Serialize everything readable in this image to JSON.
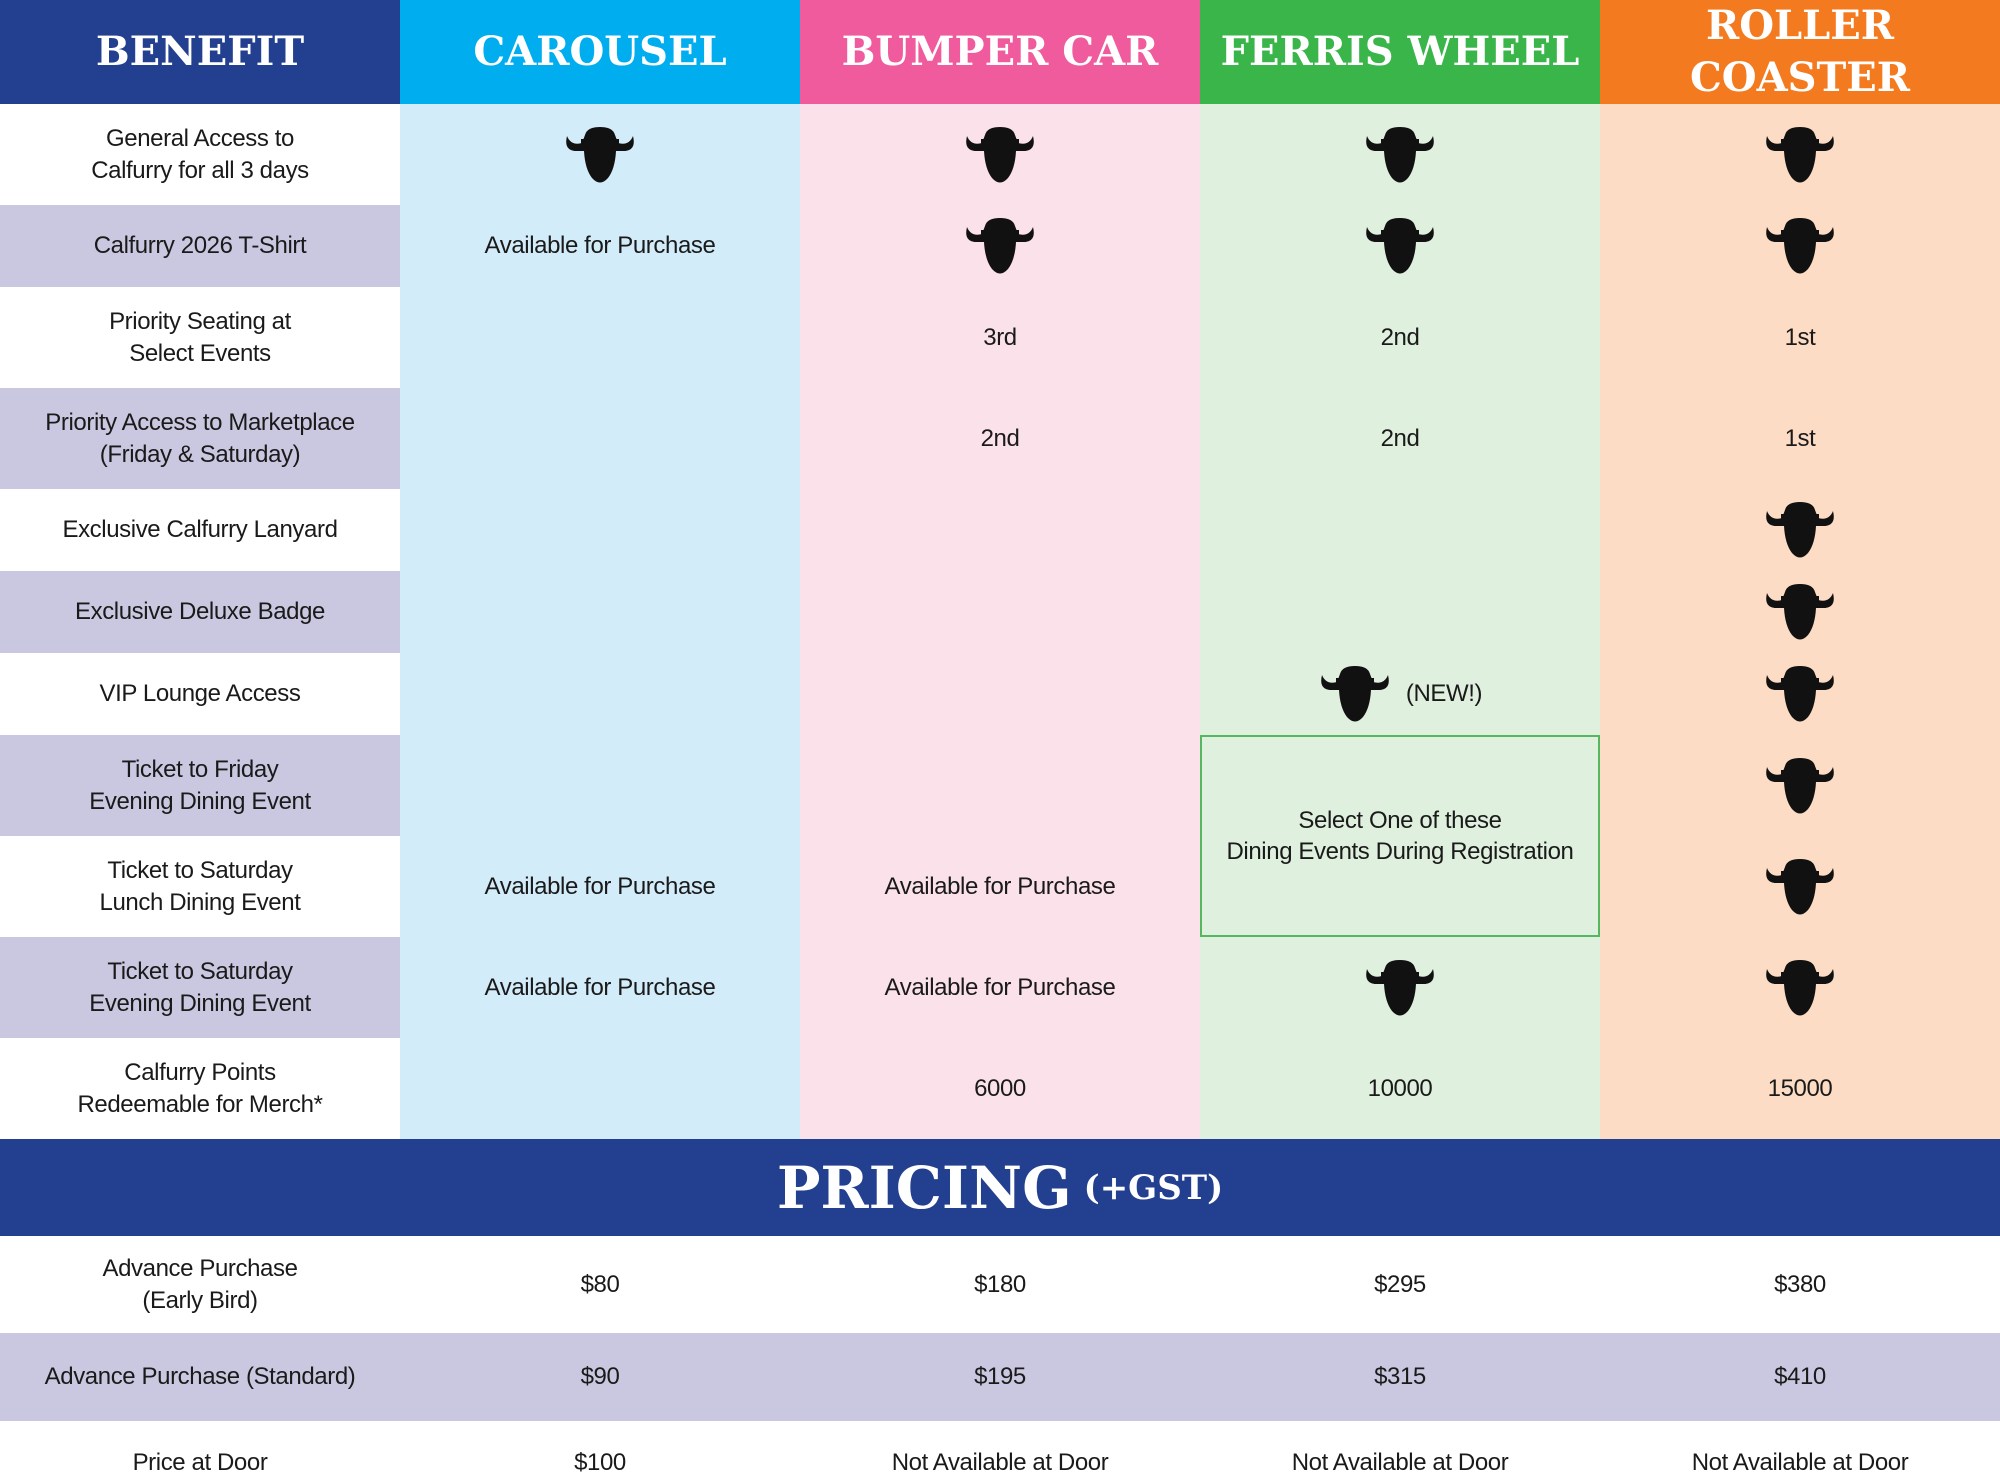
{
  "header": {
    "columns": [
      "BENEFIT",
      "CAROUSEL",
      "BUMPER CAR",
      "FERRIS WHEEL",
      "ROLLER COASTER"
    ]
  },
  "benefits": [
    {
      "label": "General Access to\nCalfurry for all 3 days",
      "cells": [
        true,
        true,
        true,
        true
      ]
    },
    {
      "label": "Calfurry 2026 T-Shirt",
      "cells": [
        "Available for Purchase",
        true,
        true,
        true
      ]
    },
    {
      "label": "Priority Seating at\nSelect Events",
      "cells": [
        null,
        "3rd",
        "2nd",
        "1st"
      ]
    },
    {
      "label": "Priority Access to Marketplace\n(Friday & Saturday)",
      "cells": [
        null,
        "2nd",
        "2nd",
        "1st"
      ]
    },
    {
      "label": "Exclusive Calfurry Lanyard",
      "cells": [
        null,
        null,
        null,
        true
      ]
    },
    {
      "label": "Exclusive Deluxe Badge",
      "cells": [
        null,
        null,
        null,
        true
      ]
    },
    {
      "label": "VIP Lounge Access",
      "cells": [
        null,
        null,
        {
          "icon": true,
          "note": "(NEW!)"
        },
        true
      ]
    },
    {
      "label": "Ticket to Friday\nEvening Dining Event",
      "cells": [
        null,
        null,
        {
          "text": "Select One of these\nDining Events During Registration",
          "rowspan": 2
        },
        true
      ]
    },
    {
      "label": "Ticket to Saturday\nLunch Dining Event",
      "cells": [
        "Available for Purchase",
        "Available for Purchase",
        null,
        true
      ]
    },
    {
      "label": "Ticket to Saturday\nEvening Dining Event",
      "cells": [
        "Available for Purchase",
        "Available for Purchase",
        true,
        true
      ]
    },
    {
      "label": "Calfurry Points\nRedeemable for Merch*",
      "cells": [
        null,
        6000,
        10000,
        15000
      ]
    }
  ],
  "pricing": {
    "title": "PRICING",
    "note": "(+GST)",
    "rows": [
      {
        "label": "Advance Purchase\n(Early Bird)",
        "cells": [
          "$80",
          "$180",
          "$295",
          "$380"
        ]
      },
      {
        "label": "Advance Purchase (Standard)",
        "cells": [
          "$90",
          "$195",
          "$315",
          "$410"
        ]
      },
      {
        "label": "Price at Door",
        "cells": [
          "$100",
          "Not Available at Door",
          "Not Available at Door",
          "Not Available at Door"
        ]
      }
    ]
  }
}
